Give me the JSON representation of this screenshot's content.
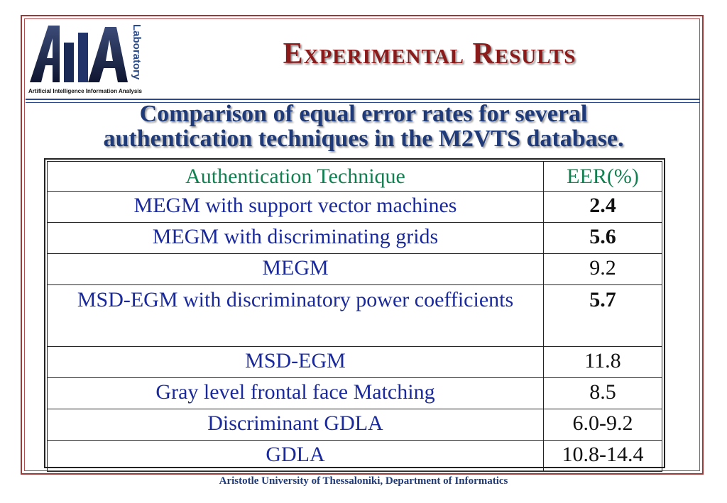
{
  "slide": {
    "title": "Experimental Results",
    "subtitle_line1": "Comparison of equal error rates for several",
    "subtitle_line2": "authentication techniques in the M2VTS database.",
    "footer": "Aristotle University of Thessaloniki, Department of Informatics"
  },
  "logo": {
    "letters": "AIIA",
    "vertical_text": "Laboratory",
    "caption": "Artificial Intelligence Information Analysis"
  },
  "table": {
    "headers": [
      "Authentication Technique",
      "EER(%)"
    ],
    "rows": [
      {
        "technique": "MEGM with support vector machines",
        "eer": "2.4",
        "bold": true
      },
      {
        "technique": "MEGM with discriminating grids",
        "eer": "5.6",
        "bold": true
      },
      {
        "technique": "MEGM",
        "eer": "9.2",
        "bold": false
      },
      {
        "technique": "MSD-EGM with discriminatory power coefficients",
        "eer": "5.7",
        "bold": true
      },
      {
        "technique": "MSD-EGM",
        "eer": "11.8",
        "bold": false
      },
      {
        "technique": "Gray level frontal face Matching",
        "eer": "8.5",
        "bold": false
      },
      {
        "technique": "Discriminant GDLA",
        "eer": "6.0-9.2",
        "bold": false
      },
      {
        "technique": "GDLA",
        "eer": "10.8-14.4",
        "bold": false
      }
    ]
  },
  "colors": {
    "frame": "#9c3a3a",
    "title": "#8b1a1a",
    "subtitle": "#1f3a78",
    "header_text": "#138052",
    "technique_text": "#1a2a9c"
  }
}
